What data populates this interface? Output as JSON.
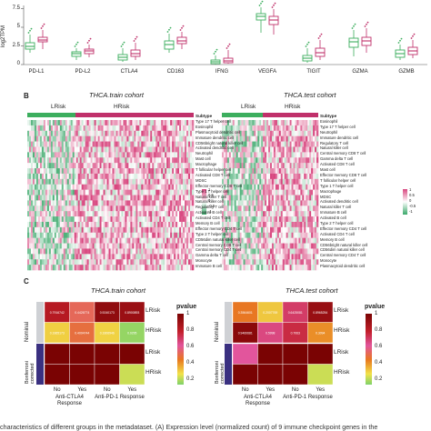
{
  "panel_a": {
    "y_label": "log2TPM",
    "y_ticks": [
      "0",
      "2.5",
      "5",
      "7.5"
    ],
    "genes": [
      "PD-L1",
      "PD-L2",
      "CTLA4",
      "CD163",
      "IFNG",
      "VEGFA",
      "TIGIT",
      "GZMA",
      "GZMB"
    ]
  },
  "panel_b": {
    "letter": "B",
    "train_title": "THCA.train cohort",
    "test_title": "THCA.test cohort",
    "group_labels": [
      "LRisk",
      "HRisk"
    ],
    "legend_title": "Subtype",
    "legend_ticks": [
      "1",
      "0.5",
      "0",
      "-0.5",
      "-1"
    ],
    "train_rows": [
      "Type 17 T helper cell",
      "Eosinophil",
      "Plasmacytoid dendritic cell",
      "Immature dendritic cell",
      "CD56bright natural killer cell",
      "Activated dendritic cell",
      "Neutrophil",
      "Mast cell",
      "Macrophage",
      "T follicular helper cell",
      "Activated CD8 T cell",
      "MDSC",
      "Effector memory CD8 T cell",
      "Type 1 T helper cell",
      "Natural killer T cell",
      "Natural killer cell",
      "Regulatory T cell",
      "Activated B cell",
      "Activated CD4 T cell",
      "Memory B cell",
      "Effector memory CD4 T cell",
      "Type 2 T helper cell",
      "CD56dim natural killer cell",
      "Central memory CD8 T cell",
      "Central memory CD4 T cell",
      "Gamma delta T cell",
      "Monocyte",
      "Immature B cell"
    ],
    "test_rows": [
      "Eosinophil",
      "Type 17 T helper cell",
      "Neutrophil",
      "Immature dendritic cell",
      "Regulatory T cell",
      "Natural killer cell",
      "Central memory CD8 T cell",
      "Gamma delta T cell",
      "Activated CD8 T cell",
      "Mast cell",
      "Effector memory CD8 T cell",
      "T follicular helper cell",
      "Type 1 T helper cell",
      "Macrophage",
      "MDSC",
      "Activated dendritic cell",
      "Natural killer T cell",
      "Immature B cell",
      "Activated B cell",
      "Type 2 T helper cell",
      "Effector memory CD4 T cell",
      "Activated CD4 T cell",
      "Memory B cell",
      "CD56bright natural killer cell",
      "CD56dim natural killer cell",
      "Central memory CD4 T cell",
      "Monocyte",
      "Plasmacytoid dendritic cell"
    ]
  },
  "panel_c": {
    "letter": "C",
    "train_title": "THCA.train cohort",
    "test_title": "THCA.test cohort",
    "row_labels": [
      "LRisk",
      "HRisk",
      "LRisk",
      "HRisk"
    ],
    "section_labels": [
      "Nominal",
      "Bonferroni corrected"
    ],
    "col_labels": [
      "No",
      "Yes",
      "No",
      "Yes"
    ],
    "group_labels": [
      "Anti-CTLA4 Response",
      "Anti-PD-1 Response"
    ],
    "legend_title": "pvalue",
    "legend_ticks": [
      "1",
      "0.8",
      "0.6",
      "0.4",
      "0.2"
    ],
    "train_values": [
      [
        "0.7916742",
        "0.4426774",
        "0.9240173",
        "0.8900893"
      ],
      [
        "0.1865173",
        "0.4004744",
        "0.1806946",
        "0.0295"
      ]
    ],
    "test_values": [
      [
        "0.3564601",
        "0.2007769",
        "0.6425081",
        "0.8965254"
      ],
      [
        "0.9460681",
        "0.5998",
        "0.7063",
        "0.3094"
      ]
    ]
  },
  "caption": "characteristics of different groups in the metadataset. (A) Expression level (normalized count) of 9 immune checkpoint genes in the",
  "colors": {
    "lrisk": "#3cae5e",
    "hrisk": "#c0306a",
    "heat_high": "#d8477f",
    "heat_low": "#3aa86a",
    "pv_high": "#7a0303",
    "pv_mid": "#e8781f",
    "pv_low": "#7ed26a"
  }
}
